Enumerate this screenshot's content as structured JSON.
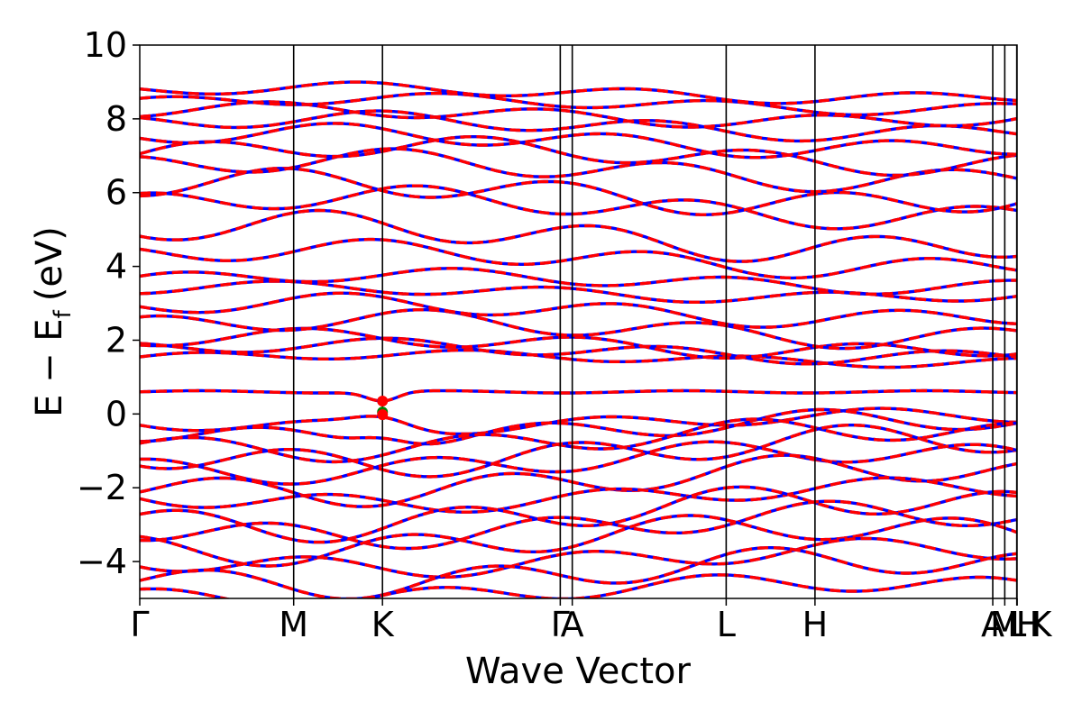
{
  "chart_data": {
    "type": "line",
    "title": "",
    "xlabel": "Wave Vector",
    "ylabel_parts": {
      "main": "E − E",
      "sub": "f",
      "unit": "(eV)"
    },
    "ylim": [
      -5,
      10
    ],
    "yticks": [
      10,
      8,
      6,
      4,
      2,
      0,
      -2,
      -4
    ],
    "ytick_labels": [
      "10",
      "8",
      "6",
      "4",
      "2",
      "0",
      "−2",
      "−4"
    ],
    "kpath": [
      {
        "label": "Γ",
        "x": 0
      },
      {
        "label": "M",
        "x": 1.0
      },
      {
        "label": "K",
        "x": 1.577
      },
      {
        "label": "Γ",
        "x": 2.732
      },
      {
        "label": "A",
        "x": 2.81
      },
      {
        "label": "L",
        "x": 3.81
      },
      {
        "label": "H",
        "x": 4.387
      },
      {
        "label": "A",
        "x": 5.542
      },
      {
        "label": "M",
        "x": 5.62
      },
      {
        "label": "L",
        "x": 5.698
      },
      {
        "label": "H",
        "x": 5.776
      },
      {
        "label": "K",
        "x": 5.854
      }
    ],
    "xlim": [
      0,
      5.7
    ],
    "divider_x": [
      1.0,
      1.577,
      2.732,
      2.81,
      3.81,
      4.387,
      5.542,
      5.62,
      5.698
    ],
    "series": [
      {
        "name": "",
        "color": "#0000ff",
        "style": "solid"
      },
      {
        "name": "",
        "color": "#ff0000",
        "style": "dashed"
      }
    ],
    "bands": [
      {
        "type": "flat",
        "e": 0.6
      },
      {
        "type": "vb",
        "e0": -0.2,
        "amp": -0.6,
        "phase": 0.3
      },
      {
        "type": "vb",
        "e0": -0.4,
        "amp": -0.9,
        "phase": 1.1
      },
      {
        "type": "vb",
        "e0": -0.7,
        "amp": -1.0,
        "phase": 2.0
      },
      {
        "type": "vb",
        "e0": -1.0,
        "amp": -1.2,
        "phase": 0.7
      },
      {
        "type": "vb",
        "e0": -1.3,
        "amp": -1.0,
        "phase": 2.6
      },
      {
        "type": "vb",
        "e0": -1.8,
        "amp": -1.2,
        "phase": 1.6
      },
      {
        "type": "vb",
        "e0": -2.2,
        "amp": -0.8,
        "phase": 0.2
      },
      {
        "type": "vb",
        "e0": -2.7,
        "amp": -1.3,
        "phase": 2.2
      },
      {
        "type": "vb",
        "e0": -3.0,
        "amp": -1.1,
        "phase": 1.0
      },
      {
        "type": "vb",
        "e0": -3.4,
        "amp": -1.2,
        "phase": 2.9
      },
      {
        "type": "vb",
        "e0": -3.9,
        "amp": -0.9,
        "phase": 0.5
      },
      {
        "type": "vb",
        "e0": -4.3,
        "amp": -1.2,
        "phase": 1.8
      },
      {
        "type": "vb",
        "e0": -4.8,
        "amp": -0.8,
        "phase": 2.5
      },
      {
        "type": "cb",
        "e0": 1.5,
        "amp": 0.4,
        "phase": 0.2
      },
      {
        "type": "cb",
        "e0": 1.7,
        "amp": 0.6,
        "phase": 1.3
      },
      {
        "type": "cb",
        "e0": 1.9,
        "amp": 0.7,
        "phase": 2.4
      },
      {
        "type": "cb",
        "e0": 2.3,
        "amp": 0.9,
        "phase": 0.8
      },
      {
        "type": "cb",
        "e0": 2.8,
        "amp": 0.8,
        "phase": 1.9
      },
      {
        "type": "cb",
        "e0": 3.3,
        "amp": 0.5,
        "phase": 2.8
      },
      {
        "type": "cb",
        "e0": 3.6,
        "amp": 0.6,
        "phase": 0.4
      },
      {
        "type": "cb",
        "e0": 4.2,
        "amp": 0.9,
        "phase": 1.5
      },
      {
        "type": "cb",
        "e0": 4.8,
        "amp": 1.2,
        "phase": 2.2
      },
      {
        "type": "cb",
        "e0": 5.6,
        "amp": 1.0,
        "phase": 0.9
      },
      {
        "type": "cb",
        "e0": 6.0,
        "amp": 1.1,
        "phase": 2.7
      },
      {
        "type": "cb",
        "e0": 6.6,
        "amp": 1.0,
        "phase": 1.2
      },
      {
        "type": "cb",
        "e0": 7.0,
        "amp": 0.9,
        "phase": 0.1
      },
      {
        "type": "cb",
        "e0": 7.4,
        "amp": 0.8,
        "phase": 2.0
      },
      {
        "type": "cb",
        "e0": 7.8,
        "amp": 0.7,
        "phase": 1.4
      },
      {
        "type": "cb",
        "e0": 8.1,
        "amp": 0.6,
        "phase": 2.9
      },
      {
        "type": "cb",
        "e0": 8.4,
        "amp": 0.5,
        "phase": 0.6
      },
      {
        "type": "cb",
        "e0": 8.7,
        "amp": 0.5,
        "phase": 1.7
      }
    ],
    "markers": [
      {
        "x": 1.577,
        "y": 0.35,
        "color": "#ff0000"
      },
      {
        "x": 1.577,
        "y": 0.05,
        "color": "#008000"
      },
      {
        "x": 1.577,
        "y": -0.02,
        "color": "#ff0000"
      }
    ]
  }
}
